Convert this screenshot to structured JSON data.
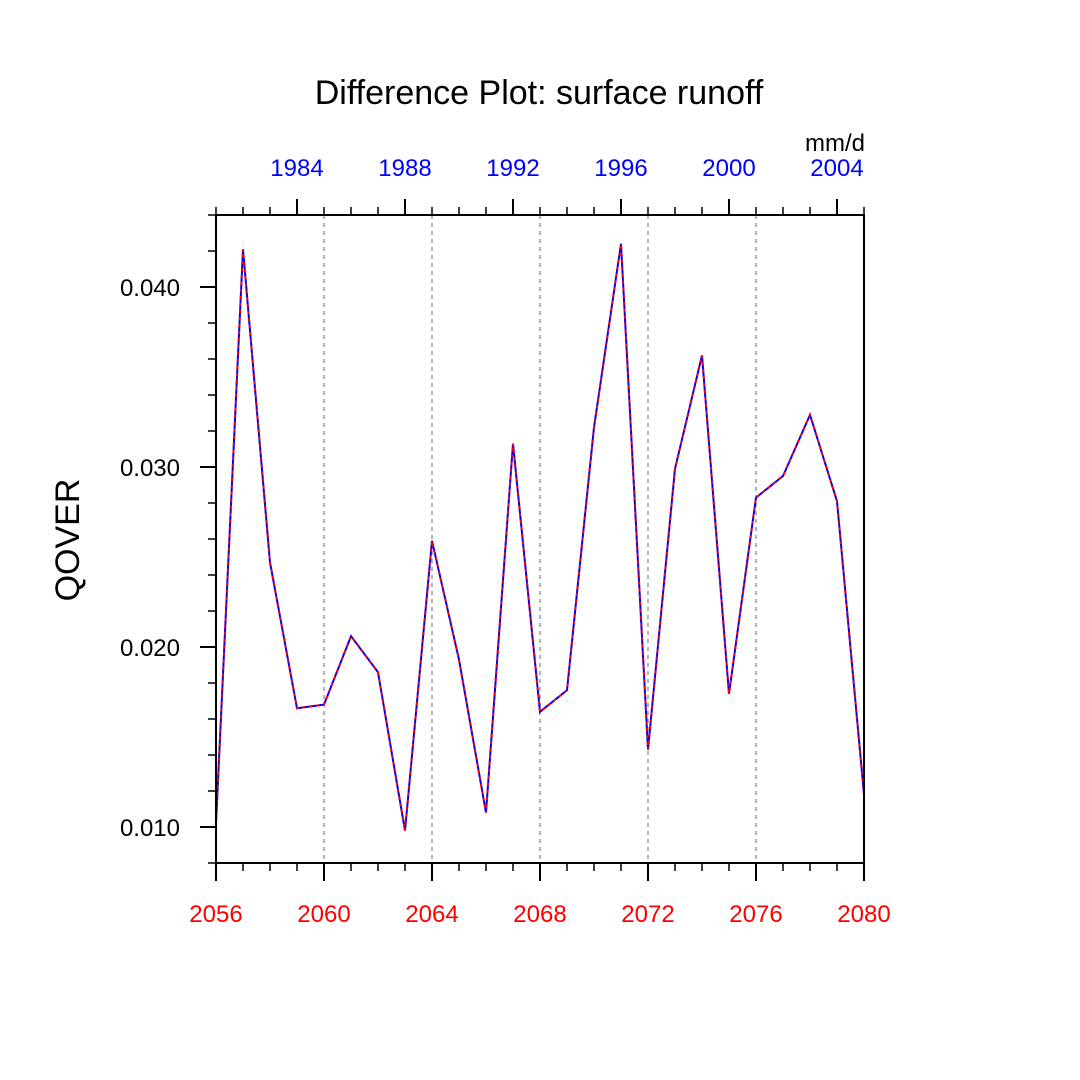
{
  "chart_data": {
    "type": "line",
    "title": "Difference Plot: surface runoff",
    "ylabel": "QOVER",
    "units": "mm/d",
    "colors": {
      "bottom_axis": "#ff0000",
      "top_axis": "#0000ff",
      "line_dash": "#ff0000",
      "line_main": "#0000ff",
      "grid": "#9a9a9a"
    },
    "grid": "vertical-dotted",
    "xlim": [
      2056,
      2080
    ],
    "ylim": [
      0.008,
      0.044
    ],
    "x_bottom_ticks": [
      2056,
      2060,
      2064,
      2068,
      2072,
      2076,
      2080
    ],
    "x_top_ticks": [
      {
        "label": "1984",
        "x": 2059
      },
      {
        "label": "1988",
        "x": 2063
      },
      {
        "label": "1992",
        "x": 2067
      },
      {
        "label": "1996",
        "x": 2071
      },
      {
        "label": "2000",
        "x": 2075
      },
      {
        "label": "2004",
        "x": 2079
      }
    ],
    "y_ticks": [
      "0.010",
      "0.020",
      "0.030",
      "0.040"
    ],
    "y_tick_values": [
      0.01,
      0.02,
      0.03,
      0.04
    ],
    "x": [
      2056,
      2057,
      2058,
      2059,
      2060,
      2061,
      2062,
      2063,
      2064,
      2065,
      2066,
      2067,
      2068,
      2069,
      2070,
      2071,
      2072,
      2073,
      2074,
      2075,
      2076,
      2077,
      2078,
      2079,
      2080
    ],
    "series": [
      {
        "values": [
          0.0102,
          0.0421,
          0.0247,
          0.0166,
          0.0168,
          0.0206,
          0.0186,
          0.0098,
          0.0259,
          0.0193,
          0.0108,
          0.0313,
          0.0164,
          0.0176,
          0.0322,
          0.0424,
          0.0143,
          0.0299,
          0.0362,
          0.0174,
          0.0283,
          0.0295,
          0.0329,
          0.0281,
          0.0118
        ]
      }
    ]
  }
}
